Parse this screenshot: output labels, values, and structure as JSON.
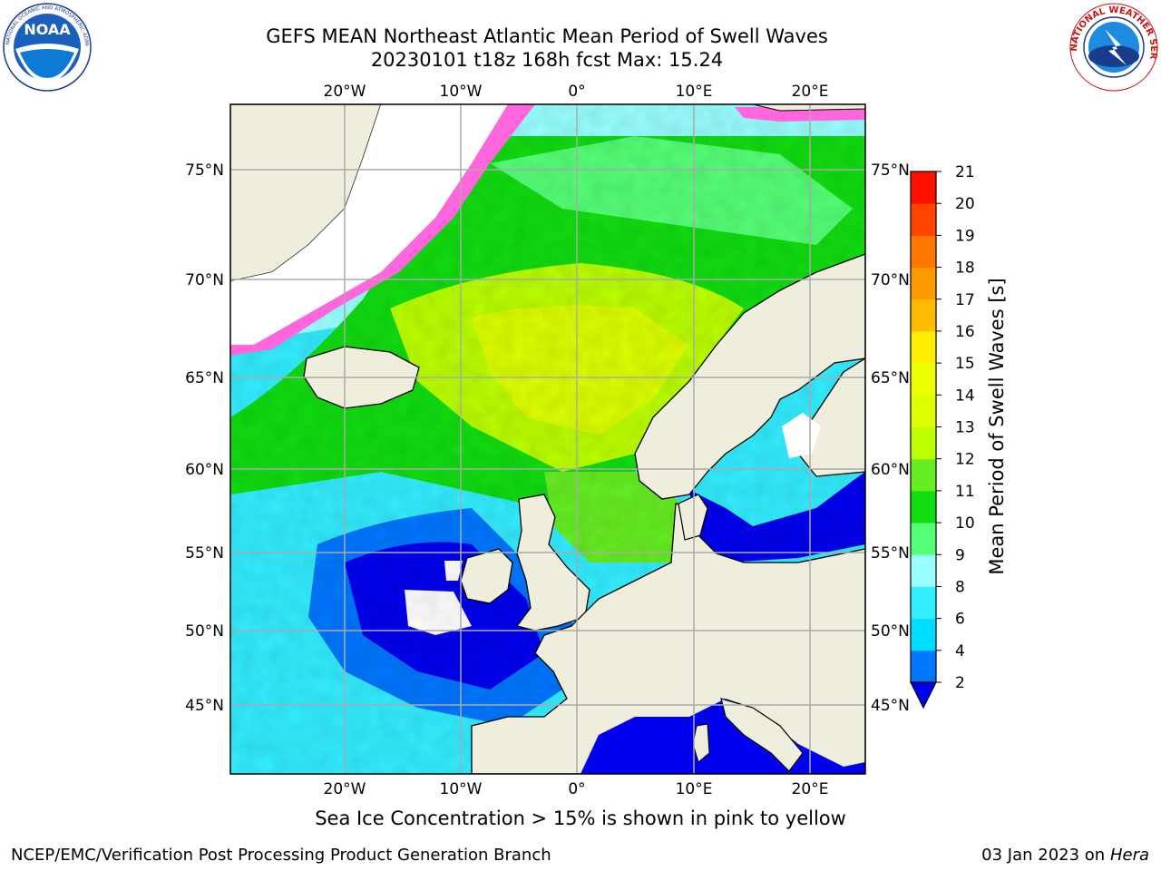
{
  "header": {
    "title_line1": "GEFS MEAN Northeast Atlantic Mean Period of Swell Waves",
    "title_line2": "20230101 t18z 168h fcst   Max: 15.24"
  },
  "logos": {
    "left": "NOAA",
    "left_ring_text": "NATIONAL OCEANIC AND ATMOSPHERIC ADMINISTRATION · U.S. DEPARTMENT OF COMMERCE",
    "right_ring_text": "NATIONAL WEATHER SERVICE"
  },
  "map": {
    "lon_labels": [
      "20°W",
      "10°W",
      "0°",
      "10°E",
      "20°E"
    ],
    "lat_labels": [
      "75°N",
      "70°N",
      "65°N",
      "60°N",
      "55°N",
      "50°N",
      "45°N"
    ],
    "colors": {
      "land": "#efeedd",
      "ice_free_white": "#ffffff",
      "grid": "#aaaaaa"
    }
  },
  "colorbar": {
    "label": "Mean Period of Swell Waves [s]",
    "ticks": [
      "2",
      "4",
      "6",
      "8",
      "9",
      "10",
      "11",
      "12",
      "13",
      "14",
      "15",
      "16",
      "17",
      "18",
      "19",
      "20",
      "21"
    ],
    "colors": [
      "#0077ff",
      "#00ddff",
      "#33eeff",
      "#99ffff",
      "#55ff77",
      "#11dd11",
      "#66ee22",
      "#bbff00",
      "#ddff00",
      "#eeff00",
      "#ffee00",
      "#ffbb00",
      "#ff9900",
      "#ff7700",
      "#ff4400",
      "#ff1100"
    ],
    "extend_color": "#0000ee"
  },
  "footer": {
    "footnote": "Sea Ice Concentration > 15% is shown in pink to yellow",
    "credit_left": "NCEP/EMC/Verification Post Processing Product Generation Branch",
    "credit_right_date": "03 Jan 2023 on",
    "credit_right_machine": "Hera"
  }
}
